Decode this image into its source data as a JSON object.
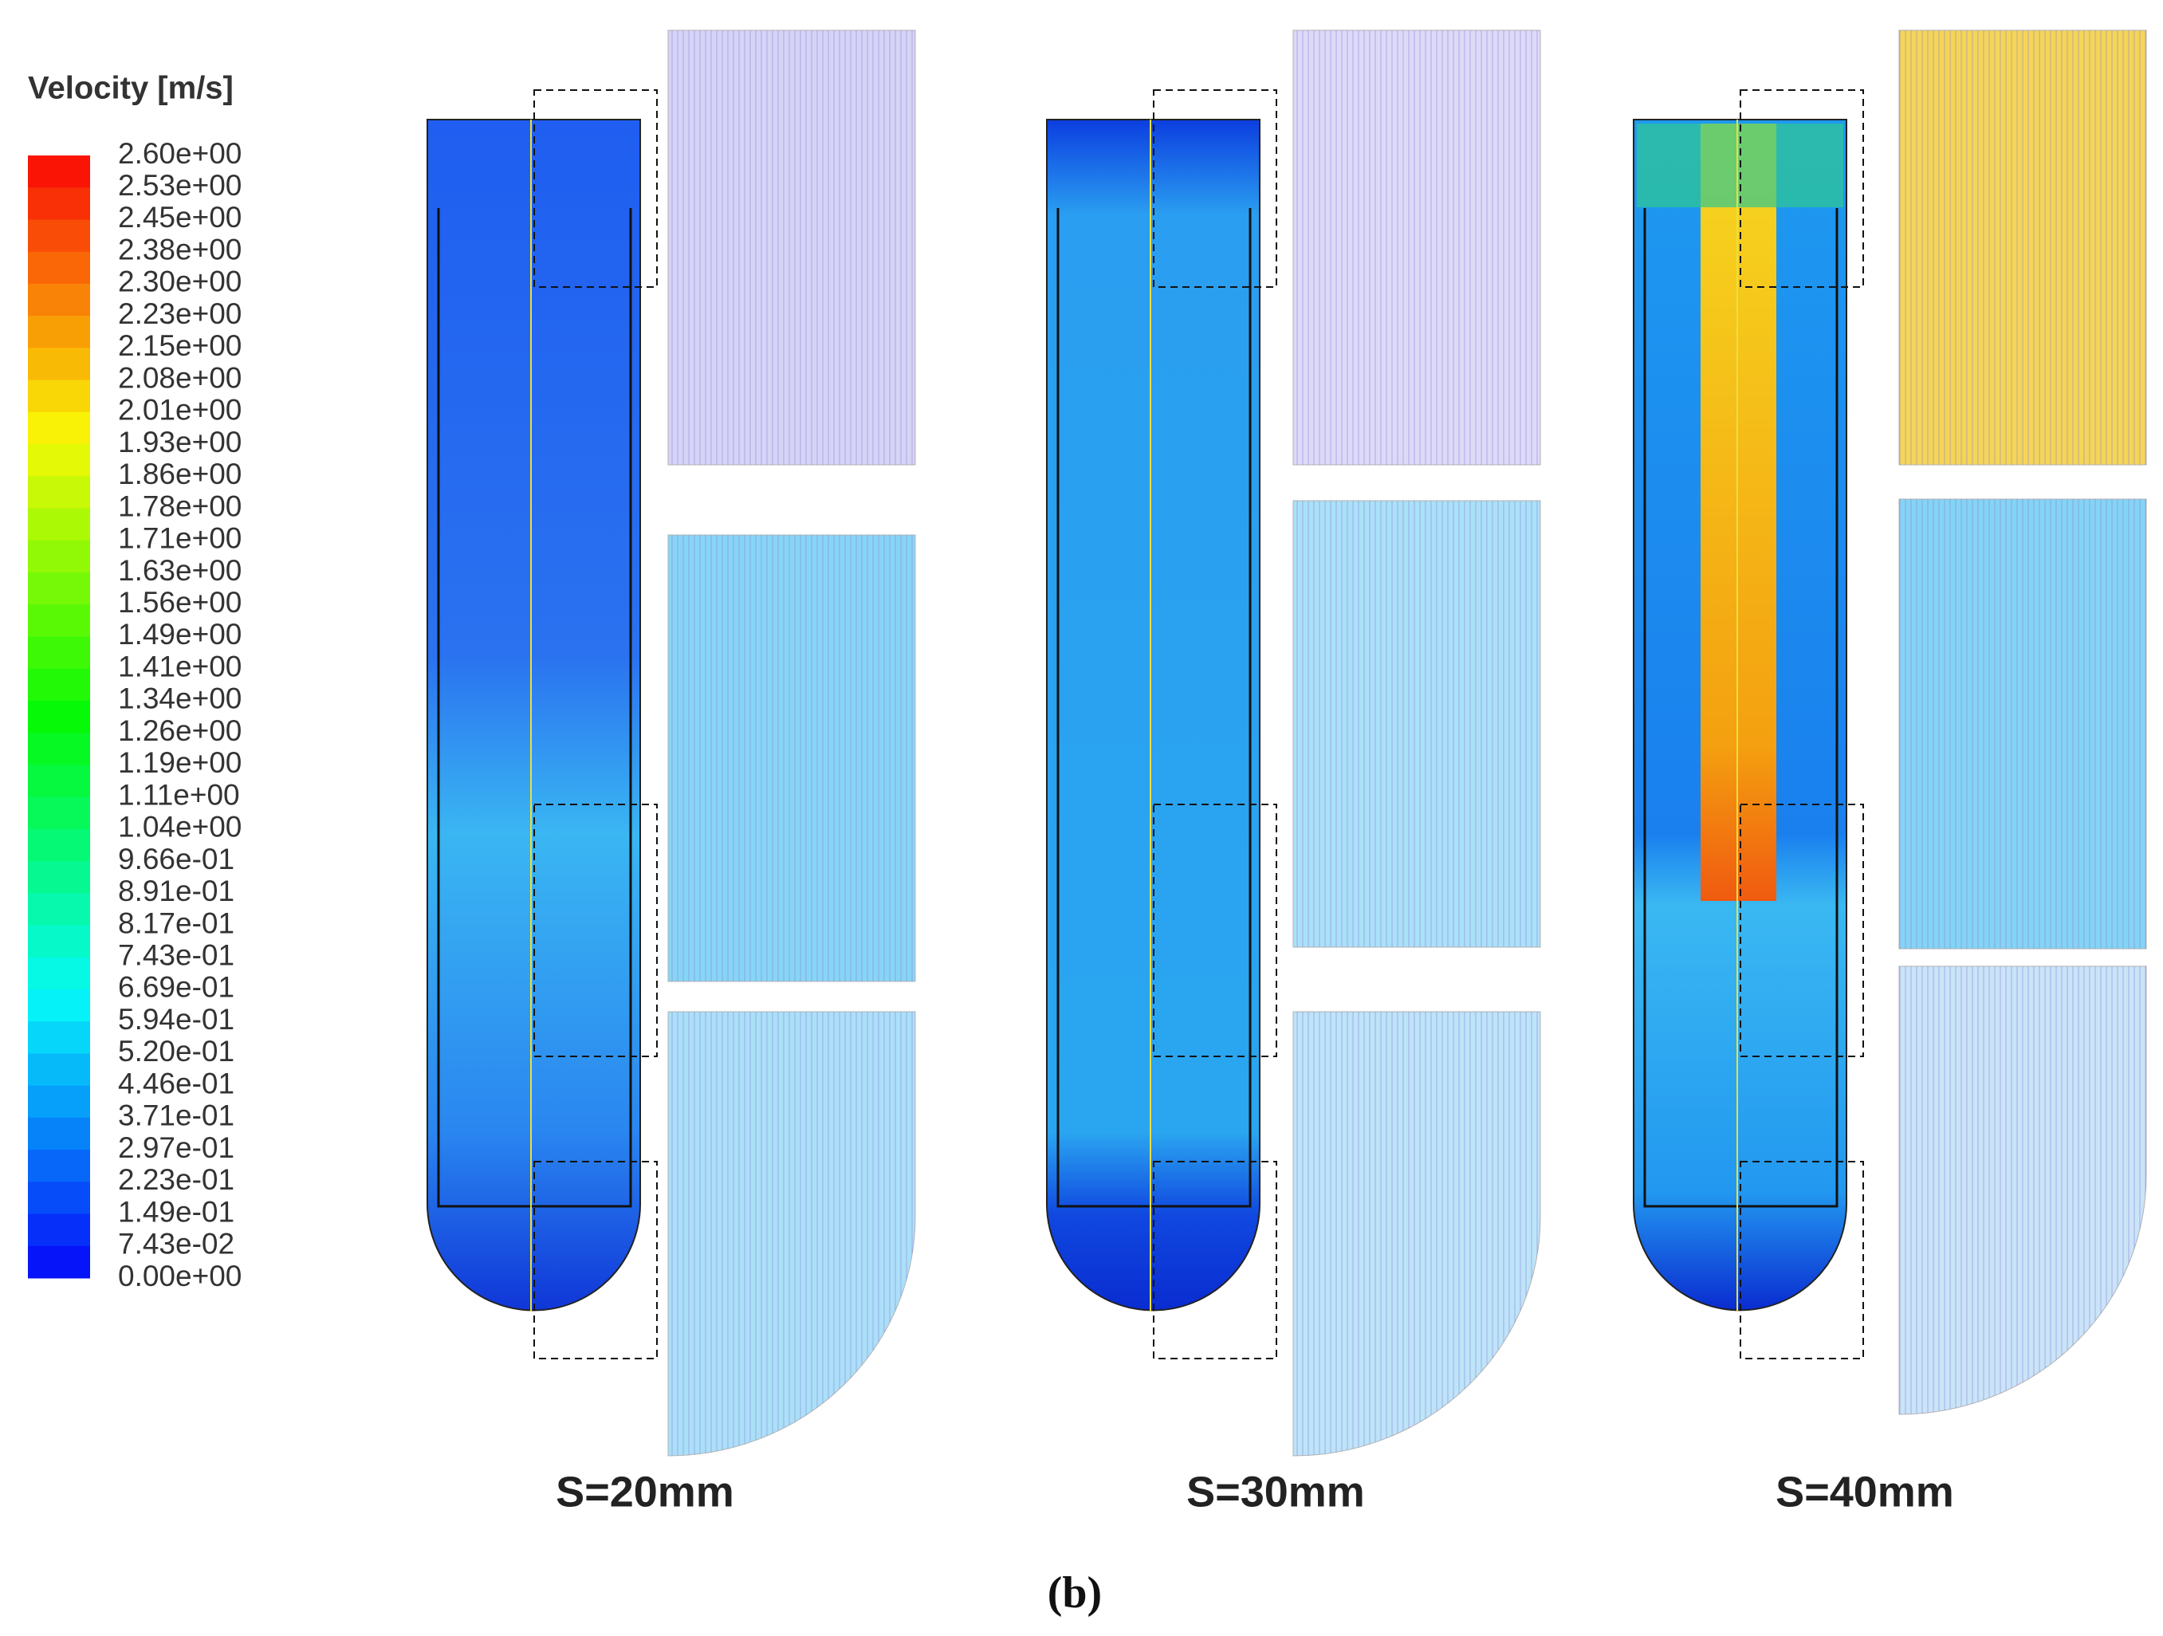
{
  "legend": {
    "title": "Velocity [m/s]",
    "labels": [
      "2.60e+00",
      "2.53e+00",
      "2.45e+00",
      "2.38e+00",
      "2.30e+00",
      "2.23e+00",
      "2.15e+00",
      "2.08e+00",
      "2.01e+00",
      "1.93e+00",
      "1.86e+00",
      "1.78e+00",
      "1.71e+00",
      "1.63e+00",
      "1.56e+00",
      "1.49e+00",
      "1.41e+00",
      "1.34e+00",
      "1.26e+00",
      "1.19e+00",
      "1.11e+00",
      "1.04e+00",
      "9.66e-01",
      "8.91e-01",
      "8.17e-01",
      "7.43e-01",
      "6.69e-01",
      "5.94e-01",
      "5.20e-01",
      "4.46e-01",
      "3.71e-01",
      "2.97e-01",
      "2.23e-01",
      "1.49e-01",
      "7.43e-02",
      "0.00e+00"
    ]
  },
  "panels": [
    {
      "caption": "S=20mm"
    },
    {
      "caption": "S=30mm"
    },
    {
      "caption": "S=40mm"
    }
  ],
  "figure_label": "(b)"
}
